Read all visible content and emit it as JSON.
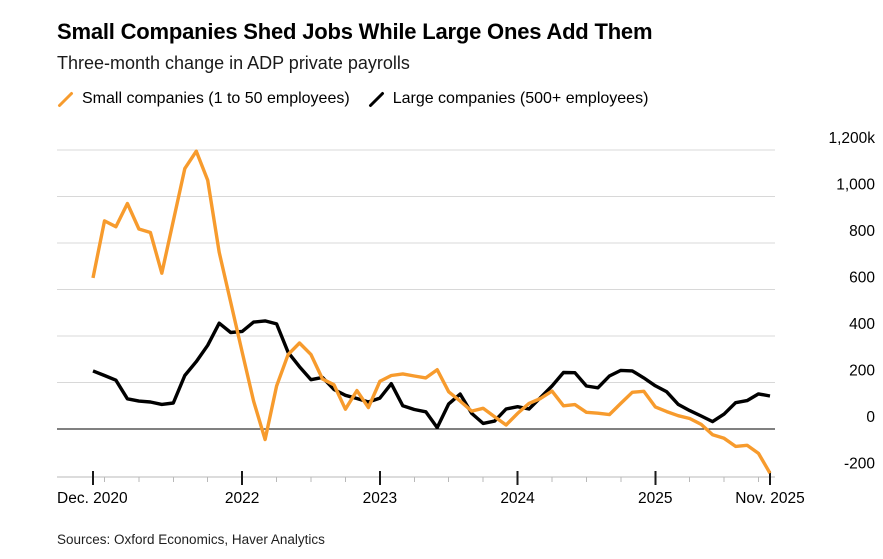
{
  "header": {
    "title": "Small Companies Shed Jobs While Large Ones Add Them",
    "subtitle": "Three-month change in ADP private payrolls"
  },
  "legend": {
    "items": [
      {
        "label": "Small companies (1 to 50 employees)",
        "color": "#F79B2D"
      },
      {
        "label": "Large companies (500+ employees)",
        "color": "#000000"
      }
    ]
  },
  "footer": {
    "source": "Sources: Oxford Economics, Haver Analytics"
  },
  "chart_data": {
    "type": "line",
    "title": "Small Companies Shed Jobs While Large Ones Add Them",
    "subtitle": "Three-month change in ADP private payrolls",
    "unit": "thousands of payrolls (k)",
    "x_frequency": "monthly",
    "x_range_start": "Dec. 2020",
    "x_range_end": "Nov. 2025",
    "ylim": [
      -250,
      1250
    ],
    "grid": "horizontal",
    "legend_position": "top",
    "zero_line": true,
    "colors": {
      "accent_orange": "#F79B2D",
      "black": "#000000",
      "gridline": "#d8d8d8"
    },
    "x_axis": {
      "major_ticks": [
        {
          "label": "Dec. 2020",
          "month_index": 0,
          "label_anchor": "start"
        },
        {
          "label": "2022",
          "month_index": 13,
          "label_anchor": "middle"
        },
        {
          "label": "2023",
          "month_index": 25,
          "label_anchor": "middle"
        },
        {
          "label": "2024",
          "month_index": 37,
          "label_anchor": "middle"
        },
        {
          "label": "2025",
          "month_index": 49,
          "label_anchor": "middle"
        },
        {
          "label": "Nov. 2025",
          "month_index": 59,
          "label_anchor": "middle"
        }
      ],
      "minor_tick_month_indices": [
        1,
        4,
        7,
        10,
        16,
        19,
        22,
        28,
        31,
        34,
        40,
        43,
        46,
        52,
        55,
        58
      ]
    },
    "y_axis": {
      "ticks": [
        {
          "label": "1,200k",
          "value": 1200
        },
        {
          "label": "1,000",
          "value": 1000
        },
        {
          "label": "800",
          "value": 800
        },
        {
          "label": "600",
          "value": 600
        },
        {
          "label": "400",
          "value": 400
        },
        {
          "label": "200",
          "value": 200
        },
        {
          "label": "0",
          "value": 0
        },
        {
          "label": "-200",
          "value": -200
        }
      ]
    },
    "series": [
      {
        "name": "Small companies (1 to 50 employees)",
        "color": "#F79B2D",
        "values": [
          650,
          895,
          870,
          970,
          860,
          845,
          670,
          895,
          1120,
          1195,
          1070,
          760,
          545,
          330,
          120,
          -45,
          185,
          320,
          370,
          320,
          215,
          190,
          85,
          165,
          92,
          205,
          230,
          237,
          228,
          220,
          255,
          160,
          120,
          77,
          89,
          53,
          17,
          67,
          110,
          131,
          163,
          100,
          105,
          72,
          68,
          62,
          110,
          158,
          162,
          95,
          75,
          57,
          45,
          20,
          -25,
          -40,
          -75,
          -70,
          -105,
          -190
        ]
      },
      {
        "name": "Large companies (500+ employees)",
        "color": "#000000",
        "values": [
          250,
          230,
          210,
          130,
          120,
          116,
          106,
          112,
          230,
          290,
          360,
          455,
          415,
          420,
          460,
          465,
          452,
          330,
          268,
          212,
          222,
          170,
          145,
          131,
          116,
          133,
          195,
          100,
          84,
          74,
          6,
          108,
          150,
          67,
          24,
          34,
          86,
          96,
          86,
          135,
          185,
          243,
          242,
          185,
          177,
          228,
          252,
          250,
          220,
          186,
          160,
          106,
          79,
          56,
          32,
          64,
          113,
          122,
          151,
          142
        ]
      }
    ]
  }
}
